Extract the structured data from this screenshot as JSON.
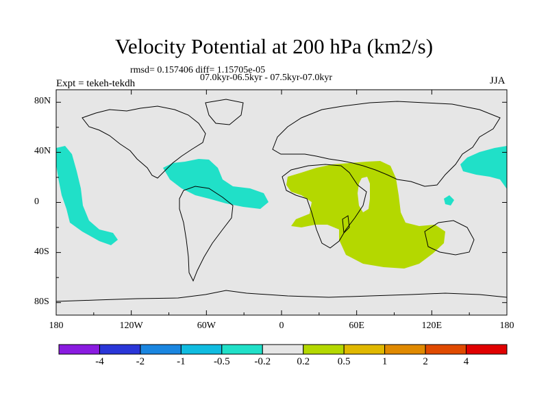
{
  "title": "Velocity Potential at 200 hPa (km2/s)",
  "stats_line": "rmsd= 0.157406 diff= 1.15705e-05",
  "period_line": "07.0kyr-06.5kyr - 07.5kyr-07.0kyr",
  "left_label": "Expt = tekeh-tekdh",
  "right_label": "JJA",
  "map": {
    "projection": "cylindrical equidistant",
    "lon_range": [
      -180,
      180
    ],
    "lat_range": [
      -90,
      90
    ],
    "background": "#e6e6e6",
    "negative_region_color": "#20e0c8",
    "positive_region_color": "#b4d800",
    "y_ticks": [
      {
        "lat": 80,
        "label": "80N"
      },
      {
        "lat": 40,
        "label": "40N"
      },
      {
        "lat": 0,
        "label": "0"
      },
      {
        "lat": -40,
        "label": "40S"
      },
      {
        "lat": -80,
        "label": "80S"
      }
    ],
    "x_ticks": [
      {
        "lon": -180,
        "label": "180"
      },
      {
        "lon": -120,
        "label": "120W"
      },
      {
        "lon": -60,
        "label": "60W"
      },
      {
        "lon": 0,
        "label": "0"
      },
      {
        "lon": 60,
        "label": "60E"
      },
      {
        "lon": 120,
        "label": "120E"
      },
      {
        "lon": 180,
        "label": "180"
      }
    ]
  },
  "colorbar": {
    "colors": [
      "#8a1be0",
      "#2a36d8",
      "#1a86e0",
      "#10bce0",
      "#20e0c8",
      "#e6e6e6",
      "#b4d800",
      "#e0b800",
      "#e08a00",
      "#e04a00",
      "#e00000"
    ],
    "labels": [
      "-4",
      "-2",
      "-1",
      "-0.5",
      "-0.2",
      "0.2",
      "0.5",
      "1",
      "2",
      "4"
    ]
  }
}
